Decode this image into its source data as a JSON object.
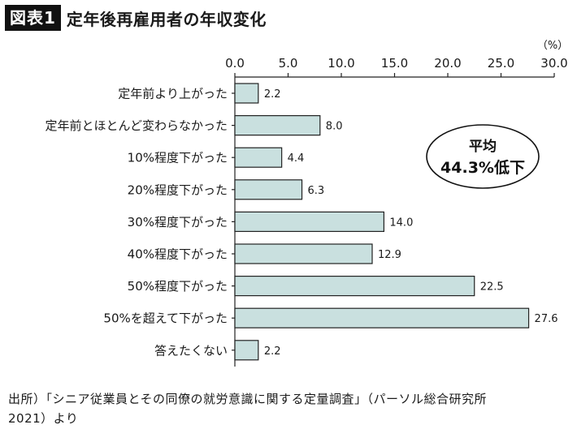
{
  "header": {
    "badge": "図表1",
    "title": "定年後再雇用者の年収変化"
  },
  "source": {
    "line1": "出所）「シニア従業員とその同僚の就労意識に関する定量調査」（パーソル総合研究所",
    "line2": "2021）より"
  },
  "colors": {
    "bar_fill": "#c9e0df",
    "bar_stroke": "#222222",
    "badge_bg": "#111111"
  },
  "chart_data": {
    "type": "bar",
    "orientation": "horizontal",
    "unit_label": "（%）",
    "xlim": [
      0,
      30
    ],
    "ticks": [
      "0.0",
      "5.0",
      "10.0",
      "15.0",
      "20.0",
      "25.0",
      "30.0"
    ],
    "tick_values": [
      0,
      5,
      10,
      15,
      20,
      25,
      30
    ],
    "categories": [
      "定年前より上がった",
      "定年前とほとんど変わらなかった",
      "10%程度下がった",
      "20%程度下がった",
      "30%程度下がった",
      "40%程度下がった",
      "50%程度下がった",
      "50%を超えて下がった",
      "答えたくない"
    ],
    "values": [
      2.2,
      8.0,
      4.4,
      6.3,
      14.0,
      12.9,
      22.5,
      27.6,
      2.2
    ],
    "value_labels": [
      "2.2",
      "8.0",
      "4.4",
      "6.3",
      "14.0",
      "12.9",
      "22.5",
      "27.6",
      "2.2"
    ],
    "annotation": {
      "line1": "平均",
      "line2": "44.3%低下"
    }
  }
}
